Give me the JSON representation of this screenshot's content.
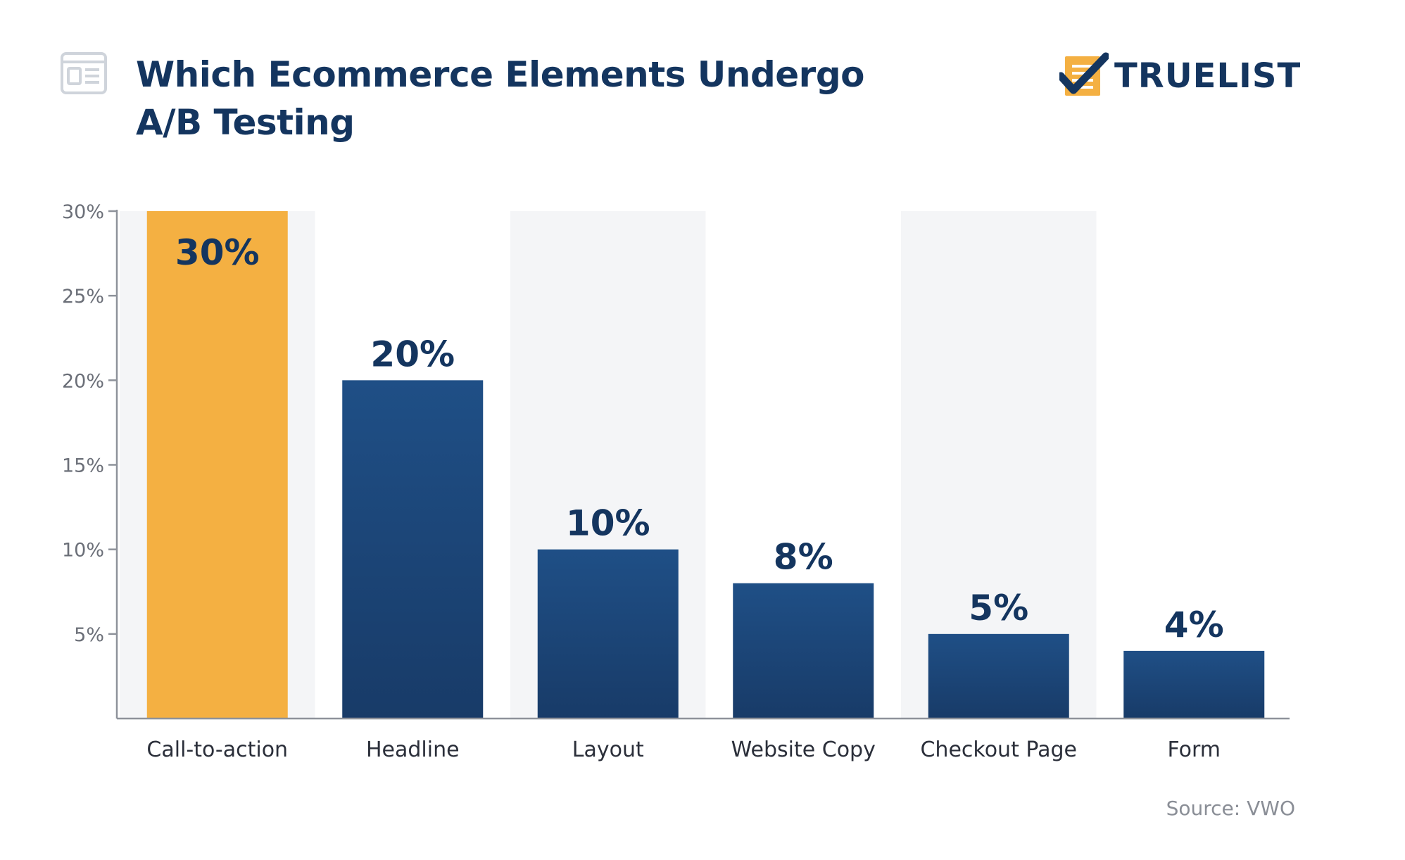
{
  "header": {
    "icon": "newspaper-icon",
    "brand_icon": "checklist-icon"
  },
  "brand": {
    "name": "TRUELIST"
  },
  "source": "Source: VWO",
  "colors": {
    "highlight": "#f4b042",
    "bar": "#1c4476",
    "title": "#14355f",
    "band": "#f4f5f7",
    "axis": "#6b6f78"
  },
  "chart_data": {
    "type": "bar",
    "title": "Which Ecommerce Elements Undergo A/B Testing",
    "xlabel": "",
    "ylabel": "",
    "categories": [
      "Call-to-action",
      "Headline",
      "Layout",
      "Website Copy",
      "Checkout Page",
      "Form"
    ],
    "values": [
      30,
      20,
      10,
      8,
      5,
      4
    ],
    "value_labels": [
      "30%",
      "20%",
      "10%",
      "8%",
      "5%",
      "4%"
    ],
    "highlighted_index": 0,
    "ylim": [
      0,
      30
    ],
    "yticks": [
      5,
      10,
      15,
      20,
      25,
      30
    ],
    "ytick_labels": [
      "5%",
      "10%",
      "15%",
      "20%",
      "25%",
      "30%"
    ],
    "grid": false,
    "legend": "none",
    "background_bands": "alternating"
  }
}
